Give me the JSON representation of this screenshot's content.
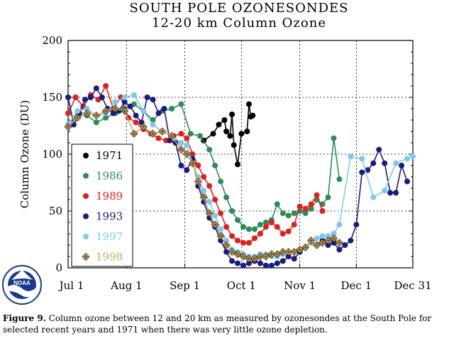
{
  "chart_data": {
    "type": "line",
    "title": "SOUTH POLE OZONESONDES",
    "subtitle": "12-20 km Column Ozone",
    "ylabel": "Column Ozone (DU)",
    "xlabel": "",
    "ylim": [
      0,
      200
    ],
    "xlim": [
      0,
      183
    ],
    "yticks": [
      0,
      50,
      100,
      150,
      200
    ],
    "xticks": [
      {
        "label": "Jul 1",
        "day": 0
      },
      {
        "label": "Aug 1",
        "day": 31
      },
      {
        "label": "Sep 1",
        "day": 62
      },
      {
        "label": "Oct 1",
        "day": 92
      },
      {
        "label": "Nov 1",
        "day": 123
      },
      {
        "label": "Dec 1",
        "day": 153
      },
      {
        "label": "Dec 31",
        "day": 183
      }
    ],
    "grid": true,
    "legend_position": "left",
    "series": [
      {
        "name": "1971",
        "color": "#000000",
        "marker": "circle",
        "x": [
          72,
          77,
          80,
          83,
          84,
          86,
          87,
          88,
          90,
          92,
          95,
          96,
          97,
          98
        ],
        "y": [
          112,
          118,
          126,
          130,
          120,
          116,
          135,
          108,
          91,
          118,
          120,
          144,
          133,
          134
        ]
      },
      {
        "name": "1986",
        "color": "#2e8b57",
        "marker": "circle",
        "x": [
          0,
          5,
          10,
          15,
          20,
          25,
          30,
          35,
          40,
          45,
          50,
          55,
          60,
          65,
          70,
          75,
          78,
          81,
          84,
          87,
          90,
          93,
          96,
          99,
          102,
          105,
          108,
          111,
          114,
          117,
          120,
          123,
          126,
          129,
          132,
          135,
          138,
          141,
          144
        ],
        "y": [
          126,
          134,
          134,
          128,
          132,
          136,
          140,
          144,
          138,
          130,
          138,
          140,
          144,
          118,
          116,
          104,
          90,
          76,
          62,
          50,
          42,
          36,
          34,
          34,
          38,
          40,
          42,
          56,
          48,
          46,
          48,
          50,
          48,
          52,
          60,
          56,
          62,
          114,
          78
        ]
      },
      {
        "name": "1989",
        "color": "#e0201a",
        "marker": "circle",
        "x": [
          0,
          4,
          8,
          12,
          16,
          20,
          24,
          28,
          32,
          36,
          40,
          44,
          48,
          52,
          56,
          60,
          63,
          66,
          69,
          72,
          75,
          78,
          81,
          84,
          87,
          90,
          93,
          96,
          99,
          102,
          105,
          108,
          111,
          114,
          117,
          120,
          123,
          126,
          129,
          132,
          135
        ],
        "y": [
          136,
          150,
          142,
          152,
          148,
          160,
          140,
          150,
          132,
          128,
          122,
          118,
          114,
          112,
          116,
          118,
          114,
          100,
          90,
          80,
          72,
          60,
          48,
          36,
          28,
          24,
          22,
          22,
          26,
          30,
          36,
          40,
          36,
          30,
          32,
          38,
          54,
          52,
          56,
          64,
          50
        ]
      },
      {
        "name": "1993",
        "color": "#1a1a80",
        "marker": "circle",
        "x": [
          0,
          3,
          6,
          9,
          12,
          15,
          18,
          21,
          24,
          27,
          30,
          33,
          36,
          39,
          42,
          45,
          48,
          51,
          54,
          57,
          60,
          63,
          66,
          69,
          72,
          75,
          78,
          81,
          84,
          87,
          90,
          93,
          96,
          99,
          102,
          105,
          108,
          111,
          114,
          117,
          120,
          123,
          126,
          129,
          132,
          135,
          138,
          141,
          144,
          147,
          150,
          153,
          156,
          159,
          162,
          165,
          168,
          171,
          174,
          177,
          180
        ],
        "y": [
          150,
          126,
          136,
          148,
          150,
          158,
          150,
          140,
          136,
          138,
          146,
          142,
          134,
          128,
          150,
          148,
          136,
          140,
          112,
          110,
          90,
          86,
          96,
          72,
          58,
          44,
          36,
          24,
          14,
          6,
          4,
          2,
          4,
          6,
          4,
          2,
          2,
          4,
          6,
          10,
          8,
          14,
          18,
          22,
          20,
          24,
          20,
          22,
          16,
          20,
          24,
          38,
          84,
          86,
          92,
          104,
          92,
          66,
          66,
          90,
          76
        ]
      },
      {
        "name": "1997",
        "color": "#7ec8f0",
        "marker": "circle",
        "x": [
          0,
          5,
          10,
          15,
          20,
          25,
          30,
          35,
          40,
          45,
          50,
          55,
          60,
          63,
          66,
          69,
          72,
          75,
          78,
          81,
          84,
          87,
          90,
          93,
          96,
          99,
          102,
          105,
          108,
          111,
          114,
          117,
          120,
          123,
          126,
          129,
          132,
          135,
          138,
          141,
          144,
          150,
          156,
          162,
          168,
          174,
          180,
          183
        ],
        "y": [
          126,
          138,
          140,
          134,
          136,
          146,
          150,
          152,
          138,
          126,
          120,
          116,
          110,
          108,
          92,
          80,
          68,
          58,
          46,
          34,
          24,
          16,
          14,
          12,
          10,
          10,
          12,
          12,
          10,
          10,
          12,
          14,
          14,
          16,
          18,
          22,
          26,
          28,
          28,
          30,
          38,
          98,
          96,
          62,
          68,
          92,
          96,
          98
        ]
      },
      {
        "name": "1998",
        "color": "#c8a860",
        "marker": "diamond",
        "x": [
          0,
          5,
          10,
          15,
          20,
          25,
          30,
          35,
          40,
          45,
          50,
          55,
          60,
          63,
          66,
          69,
          72,
          75,
          78,
          81,
          84,
          87,
          90,
          93,
          96,
          99,
          102,
          105,
          108,
          111,
          114,
          117,
          120,
          123,
          126,
          129,
          132,
          135,
          138,
          141,
          144
        ],
        "y": [
          124,
          132,
          136,
          134,
          138,
          140,
          138,
          118,
          124,
          118,
          120,
          116,
          104,
          100,
          92,
          76,
          62,
          48,
          38,
          28,
          20,
          14,
          12,
          10,
          8,
          8,
          10,
          10,
          12,
          12,
          14,
          14,
          14,
          16,
          18,
          24,
          20,
          22,
          24,
          26,
          22
        ]
      }
    ]
  },
  "caption": {
    "label": "Figure 9.",
    "text": "Column ozone between 12 and 20 km as measured by ozonesondes at the South Pole for selected recent years and 1971 when there was very little ozone depletion."
  },
  "logo": {
    "text": "NOAA"
  }
}
